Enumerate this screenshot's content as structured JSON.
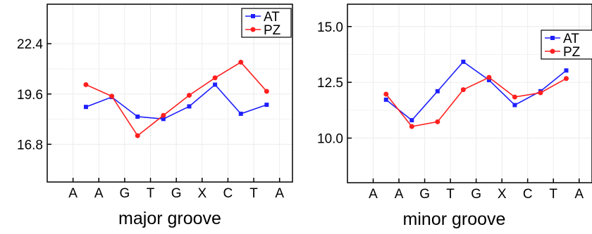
{
  "chart_data": [
    {
      "type": "line",
      "xlabel": "major groove",
      "ylabel": "",
      "categories": [
        "A",
        "A",
        "G",
        "T",
        "G",
        "X",
        "C",
        "T",
        "A"
      ],
      "yticks": [
        "16.8",
        "19.6",
        "22.4"
      ],
      "ylim": [
        14.7,
        24.6
      ],
      "grid": true,
      "legend_position": "top-right",
      "series": [
        {
          "name": "AT",
          "color": "#1f1fff",
          "marker": "square",
          "points": [
            [
              1.5,
              18.88
            ],
            [
              2.5,
              19.43
            ],
            [
              3.5,
              18.34
            ],
            [
              4.5,
              18.21
            ],
            [
              5.5,
              18.91
            ],
            [
              6.5,
              20.12
            ],
            [
              7.5,
              18.5
            ],
            [
              8.5,
              19.0
            ]
          ]
        },
        {
          "name": "PZ",
          "color": "#ff1f1f",
          "marker": "circle",
          "points": [
            [
              1.5,
              20.12
            ],
            [
              2.5,
              19.48
            ],
            [
              3.5,
              17.28
            ],
            [
              4.5,
              18.41
            ],
            [
              5.5,
              19.53
            ],
            [
              6.5,
              20.5
            ],
            [
              7.5,
              21.37
            ],
            [
              8.5,
              19.75
            ]
          ]
        }
      ]
    },
    {
      "type": "line",
      "xlabel": "minor groove",
      "ylabel": "",
      "categories": [
        "A",
        "A",
        "G",
        "T",
        "G",
        "X",
        "C",
        "T",
        "A"
      ],
      "yticks": [
        "10.0",
        "12.5",
        "15.0"
      ],
      "ylim": [
        8.0,
        16.0
      ],
      "grid": true,
      "legend_position": "top-right",
      "series": [
        {
          "name": "AT",
          "color": "#1f1fff",
          "marker": "square",
          "points": [
            [
              1.5,
              11.72
            ],
            [
              2.5,
              10.8
            ],
            [
              3.5,
              12.1
            ],
            [
              4.5,
              13.42
            ],
            [
              5.5,
              12.6
            ],
            [
              6.5,
              11.48
            ],
            [
              7.5,
              12.1
            ],
            [
              8.5,
              13.03
            ]
          ]
        },
        {
          "name": "PZ",
          "color": "#ff1f1f",
          "marker": "circle",
          "points": [
            [
              1.5,
              11.97
            ],
            [
              2.5,
              10.52
            ],
            [
              3.5,
              10.73
            ],
            [
              4.5,
              12.17
            ],
            [
              5.5,
              12.72
            ],
            [
              6.5,
              11.84
            ],
            [
              7.5,
              12.03
            ],
            [
              8.5,
              12.67
            ]
          ]
        }
      ]
    }
  ]
}
